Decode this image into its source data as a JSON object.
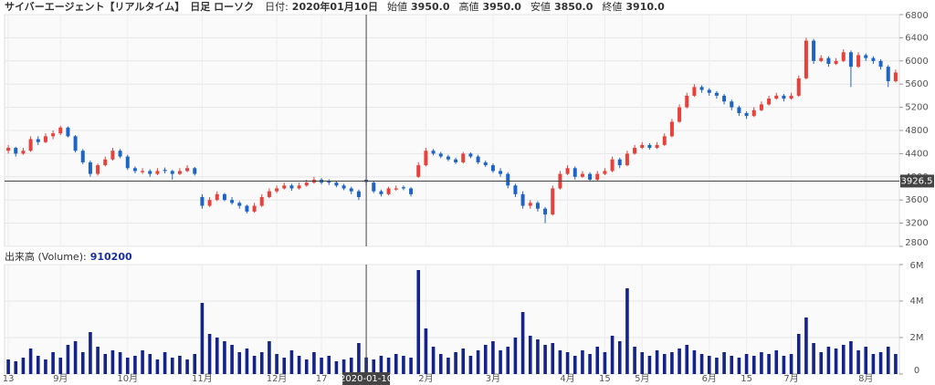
{
  "chart_data": [
    {
      "type": "candlestick",
      "title": "サイバーエージェント【リアルタイム】",
      "subtitle": "日足 ローソク",
      "readout": [
        {
          "name": "日付:",
          "label": "2020年01月10日"
        },
        {
          "name": "始値",
          "value": 3950,
          "label": "3950.0"
        },
        {
          "name": "高値",
          "value": 3950,
          "label": "3950.0"
        },
        {
          "name": "安値",
          "value": 3850,
          "label": "3850.0"
        },
        {
          "name": "終値",
          "value": 3910,
          "label": "3910.0"
        }
      ],
      "open": [
        4450,
        4500,
        4400,
        4450,
        4650,
        4600,
        4700,
        4750,
        4850,
        4700,
        4450,
        4250,
        4050,
        4200,
        4300,
        4450,
        4350,
        4150,
        4080,
        4100,
        4050,
        4120,
        4100,
        4050,
        4100,
        4150,
        3650,
        3500,
        3600,
        3700,
        3600,
        3550,
        3500,
        3400,
        3500,
        3650,
        3750,
        3800,
        3850,
        3800,
        3850,
        3900,
        3950,
        3920,
        3900,
        3850,
        3800,
        3750,
        3950,
        3900,
        3750,
        3700,
        3780,
        3820,
        3800,
        4000,
        4200,
        4450,
        4400,
        4350,
        4300,
        4250,
        4400,
        4350,
        4250,
        4200,
        4100,
        4050,
        3850,
        3700,
        3500,
        3550,
        3450,
        3350,
        3800,
        4050,
        4150,
        4000,
        4050,
        3950,
        4050,
        4100,
        4300,
        4200,
        4400,
        4500,
        4550,
        4500,
        4550,
        4700,
        4950,
        5200,
        5400,
        5550,
        5500,
        5450,
        5400,
        5300,
        5200,
        5100,
        5050,
        5150,
        5250,
        5350,
        5400,
        5350,
        5400,
        5700,
        6350,
        6000,
        6050,
        5950,
        6000,
        6150,
        5900,
        6100,
        6050,
        6000,
        5900,
        5650
      ],
      "high": [
        4550,
        4520,
        4500,
        4700,
        4700,
        4750,
        4800,
        4880,
        4870,
        4720,
        4480,
        4280,
        4230,
        4350,
        4500,
        4480,
        4380,
        4180,
        4150,
        4130,
        4150,
        4160,
        4120,
        4150,
        4200,
        4170,
        3700,
        3650,
        3750,
        3720,
        3650,
        3580,
        3520,
        3550,
        3700,
        3800,
        3850,
        3900,
        3880,
        3900,
        3950,
        4000,
        3980,
        3960,
        3920,
        3880,
        3830,
        3780,
        3950,
        3920,
        3780,
        3830,
        3850,
        3850,
        3820,
        4250,
        4500,
        4480,
        4430,
        4380,
        4330,
        4430,
        4420,
        4380,
        4280,
        4230,
        4150,
        4080,
        3880,
        3750,
        3600,
        3580,
        3480,
        3850,
        4100,
        4200,
        4180,
        4100,
        4080,
        4100,
        4150,
        4350,
        4330,
        4450,
        4550,
        4600,
        4580,
        4600,
        4750,
        5000,
        5250,
        5450,
        5600,
        5580,
        5530,
        5480,
        5430,
        5330,
        5230,
        5130,
        5200,
        5300,
        5400,
        5450,
        5430,
        5450,
        5750,
        6400,
        6380,
        6100,
        6080,
        6050,
        6200,
        6180,
        6150,
        6130,
        6080,
        6030,
        5930,
        5850
      ],
      "low": [
        4400,
        4350,
        4380,
        4430,
        4550,
        4580,
        4650,
        4720,
        4680,
        4420,
        4220,
        4000,
        4020,
        4180,
        4280,
        4320,
        4120,
        4060,
        4050,
        4000,
        4030,
        4060,
        3950,
        4030,
        4080,
        4020,
        3450,
        3480,
        3580,
        3580,
        3520,
        3450,
        3370,
        3380,
        3480,
        3630,
        3720,
        3780,
        3760,
        3780,
        3830,
        3880,
        3870,
        3860,
        3820,
        3770,
        3700,
        3600,
        3850,
        3720,
        3660,
        3680,
        3760,
        3770,
        3660,
        3980,
        4180,
        4370,
        4320,
        4270,
        4220,
        4230,
        4320,
        4220,
        4170,
        4070,
        4000,
        3800,
        3650,
        3450,
        3450,
        3400,
        3200,
        3330,
        3780,
        4030,
        3950,
        3980,
        3920,
        3930,
        4030,
        4080,
        4150,
        4180,
        4380,
        4480,
        4470,
        4480,
        4530,
        4680,
        4930,
        5180,
        5380,
        5450,
        5400,
        5350,
        5250,
        5150,
        5050,
        5000,
        5030,
        5130,
        5230,
        5330,
        5300,
        5330,
        5380,
        5680,
        5950,
        5980,
        5900,
        5930,
        5980,
        5550,
        5880,
        6000,
        5950,
        5850,
        5550,
        5630
      ],
      "close": [
        4500,
        4400,
        4450,
        4650,
        4600,
        4700,
        4750,
        4850,
        4700,
        4450,
        4250,
        4050,
        4200,
        4300,
        4450,
        4350,
        4150,
        4100,
        4100,
        4050,
        4100,
        4100,
        4050,
        4100,
        4150,
        4050,
        3500,
        3600,
        3700,
        3600,
        3550,
        3500,
        3400,
        3500,
        3650,
        3750,
        3800,
        3850,
        3800,
        3850,
        3900,
        3950,
        3900,
        3900,
        3850,
        3800,
        3750,
        3650,
        3910,
        3750,
        3700,
        3800,
        3800,
        3800,
        3700,
        4200,
        4450,
        4400,
        4350,
        4300,
        4250,
        4400,
        4350,
        4250,
        4200,
        4100,
        4050,
        3850,
        3700,
        3500,
        3550,
        3450,
        3350,
        3800,
        4050,
        4150,
        4000,
        4050,
        3950,
        4050,
        4100,
        4300,
        4200,
        4400,
        4500,
        4550,
        4500,
        4550,
        4700,
        4950,
        5200,
        5400,
        5550,
        5500,
        5450,
        5400,
        5300,
        5200,
        5100,
        5050,
        5150,
        5250,
        5350,
        5400,
        5350,
        5400,
        5700,
        6350,
        6000,
        6050,
        5950,
        6000,
        6150,
        5900,
        6100,
        6050,
        6000,
        5900,
        5650,
        5800
      ],
      "up_color": "#e8413c",
      "down_color": "#1e64c8",
      "ylim": [
        2800,
        6800
      ],
      "yticks": [
        2800,
        3200,
        3600,
        4000,
        4400,
        4800,
        5200,
        5600,
        6000,
        6400,
        6800
      ],
      "grid": true,
      "crosshair": {
        "x": "2020-01-10",
        "y": 3926.5
      }
    },
    {
      "type": "bar",
      "title": "出来高 (Volume):",
      "categories": [
        "13",
        null,
        null,
        null,
        null,
        null,
        null,
        "9月",
        null,
        null,
        null,
        null,
        null,
        null,
        null,
        null,
        "10月",
        null,
        null,
        null,
        null,
        null,
        null,
        null,
        null,
        null,
        "11月",
        null,
        null,
        null,
        null,
        null,
        null,
        null,
        null,
        null,
        "12月",
        null,
        null,
        null,
        null,
        null,
        "17",
        null,
        null,
        null,
        null,
        null,
        "2020-01-10",
        null,
        null,
        null,
        null,
        null,
        null,
        null,
        "2月",
        null,
        null,
        null,
        null,
        null,
        null,
        null,
        null,
        "3月",
        null,
        null,
        null,
        null,
        null,
        null,
        null,
        null,
        null,
        "4月",
        null,
        null,
        null,
        null,
        "15",
        null,
        null,
        null,
        null,
        "5月",
        null,
        null,
        null,
        null,
        null,
        null,
        null,
        null,
        "6月",
        null,
        null,
        null,
        null,
        "15",
        null,
        null,
        null,
        null,
        null,
        "7月",
        null,
        null,
        null,
        null,
        null,
        null,
        null,
        null,
        null,
        "8月",
        null,
        null,
        null,
        null
      ],
      "values": [
        800000,
        700000,
        900000,
        1400000,
        1000000,
        800000,
        1200000,
        900000,
        1600000,
        1800000,
        1200000,
        2300000,
        1500000,
        1100000,
        1300000,
        1200000,
        900000,
        1000000,
        1300000,
        1100000,
        800000,
        1200000,
        900000,
        1000000,
        800000,
        1100000,
        3900000,
        2200000,
        2000000,
        1800000,
        1600000,
        1200000,
        1400000,
        1000000,
        1200000,
        1800000,
        1100000,
        900000,
        1300000,
        1000000,
        800000,
        1200000,
        900000,
        1000000,
        700000,
        800000,
        900000,
        1700000,
        910200,
        800000,
        1000000,
        900000,
        1100000,
        1000000,
        900000,
        5700000,
        2500000,
        1500000,
        1100000,
        900000,
        1200000,
        1400000,
        1000000,
        1300000,
        1600000,
        1800000,
        1300000,
        1500000,
        2000000,
        3400000,
        2100000,
        1900000,
        1600000,
        1700000,
        1300000,
        1200000,
        1000000,
        1300000,
        1100000,
        1500000,
        1200000,
        2100000,
        1800000,
        4700000,
        1500000,
        1200000,
        1000000,
        1300000,
        1100000,
        1200000,
        1400000,
        1600000,
        1300000,
        1100000,
        1000000,
        900000,
        1200000,
        1000000,
        900000,
        1100000,
        1000000,
        1200000,
        1100000,
        1300000,
        1000000,
        1100000,
        2200000,
        3100000,
        1700000,
        1200000,
        1500000,
        1400000,
        1600000,
        1800000,
        1300000,
        1500000,
        1100000,
        1200000,
        1500000,
        1100000
      ],
      "color": "#14238a",
      "ylim": [
        0,
        6000000
      ],
      "yticks": [
        0,
        {
          "value": 2000000,
          "label": "2M"
        },
        {
          "value": 4000000,
          "label": "4M"
        },
        {
          "value": 6000000,
          "label": "6M"
        }
      ],
      "grid": true
    }
  ]
}
